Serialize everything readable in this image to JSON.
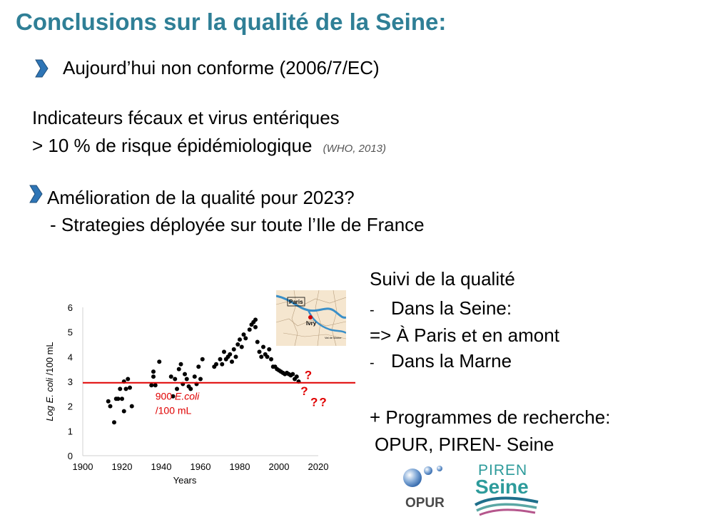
{
  "slide": {
    "title": "Conclusions sur la qualité de la Seine:",
    "bullet1": "Aujourd’hui non conforme  (2006/7/EC)",
    "indicators_line1": "Indicateurs fécaux et virus entériques",
    "indicators_line2": "> 10 % de risque épidémiologique",
    "reference": "(WHO, 2013)",
    "bullet2_line1": "Amélioration de la qualité pour 2023?",
    "bullet2_line2": "- Strategies déployée sur toute l’Ile de France",
    "monitoring": {
      "heading": "Suivi de la qualité",
      "item1_dash": "-",
      "item1": "Dans la Seine:",
      "item1_detail": "=> À Paris et en amont",
      "item2_dash": "-",
      "item2": "Dans la Marne"
    },
    "research_line1": "+ Programmes de recherche:",
    "research_line2": "OPUR, PIREN- Seine",
    "logos": {
      "opur": "OPUR",
      "piren_top": "PIREN",
      "piren_bottom": "Seine"
    },
    "map_labels": {
      "paris": "Paris",
      "ivry": "Ivry",
      "valdemarne": "Val de Marne"
    },
    "colors": {
      "title": "#2f7f96",
      "threshold": "#e00000",
      "arrow": "#2e75b6",
      "river": "#3a8fc8"
    }
  },
  "chart_data": {
    "type": "scatter",
    "xlabel": "Years",
    "ylabel_prefix": "Log ",
    "ylabel_italic": "E. coli",
    "ylabel_suffix": " /100 mL",
    "xlim": [
      1900,
      2020
    ],
    "ylim": [
      0,
      6
    ],
    "xticks": [
      1900,
      1920,
      1940,
      1960,
      1980,
      2000,
      2020
    ],
    "yticks": [
      0,
      1,
      2,
      3,
      4,
      5,
      6
    ],
    "threshold": {
      "value": 2.95,
      "label_number": "900 ",
      "label_italic": "E.coli",
      "label_line2": "/100 mL"
    },
    "question_marks": [
      {
        "x": 2013,
        "y": 3.1,
        "text": "?"
      },
      {
        "x": 2011,
        "y": 2.45,
        "text": "?"
      },
      {
        "x": 2016,
        "y": 2.0,
        "text": "??"
      }
    ],
    "points": [
      [
        1913,
        2.2
      ],
      [
        1914,
        2.0
      ],
      [
        1916,
        1.35
      ],
      [
        1917,
        2.3
      ],
      [
        1918,
        2.3
      ],
      [
        1919,
        2.7
      ],
      [
        1920,
        2.3
      ],
      [
        1921,
        3.0
      ],
      [
        1921,
        1.8
      ],
      [
        1922,
        2.7
      ],
      [
        1923,
        3.1
      ],
      [
        1924,
        2.75
      ],
      [
        1925,
        2.0
      ],
      [
        1935,
        2.85
      ],
      [
        1936,
        3.4
      ],
      [
        1936,
        3.2
      ],
      [
        1937,
        2.85
      ],
      [
        1939,
        3.8
      ],
      [
        1945,
        3.2
      ],
      [
        1946,
        2.4
      ],
      [
        1947,
        3.1
      ],
      [
        1948,
        2.7
      ],
      [
        1949,
        3.5
      ],
      [
        1950,
        3.7
      ],
      [
        1951,
        2.9
      ],
      [
        1952,
        3.3
      ],
      [
        1953,
        3.1
      ],
      [
        1954,
        2.8
      ],
      [
        1955,
        2.7
      ],
      [
        1957,
        3.2
      ],
      [
        1958,
        2.9
      ],
      [
        1959,
        3.6
      ],
      [
        1960,
        3.1
      ],
      [
        1961,
        3.9
      ],
      [
        1967,
        3.6
      ],
      [
        1968,
        3.7
      ],
      [
        1970,
        3.9
      ],
      [
        1971,
        3.7
      ],
      [
        1972,
        4.2
      ],
      [
        1973,
        3.9
      ],
      [
        1974,
        4.0
      ],
      [
        1975,
        4.1
      ],
      [
        1976,
        3.8
      ],
      [
        1977,
        4.3
      ],
      [
        1978,
        4.0
      ],
      [
        1979,
        4.5
      ],
      [
        1980,
        4.7
      ],
      [
        1981,
        4.4
      ],
      [
        1982,
        4.9
      ],
      [
        1983,
        4.75
      ],
      [
        1985,
        5.1
      ],
      [
        1986,
        5.3
      ],
      [
        1987,
        5.4
      ],
      [
        1988,
        5.5
      ],
      [
        1988,
        5.2
      ],
      [
        1989,
        4.6
      ],
      [
        1990,
        4.2
      ],
      [
        1991,
        4.0
      ],
      [
        1992,
        4.4
      ],
      [
        1993,
        4.1
      ],
      [
        1994,
        4.0
      ],
      [
        1995,
        4.3
      ],
      [
        1996,
        3.9
      ],
      [
        1997,
        3.6
      ],
      [
        1998,
        3.6
      ],
      [
        1999,
        3.5
      ],
      [
        2000,
        3.45
      ],
      [
        2001,
        3.4
      ],
      [
        2002,
        3.35
      ],
      [
        2003,
        3.3
      ],
      [
        2004,
        3.35
      ],
      [
        2005,
        3.3
      ],
      [
        2006,
        3.25
      ],
      [
        2007,
        3.3
      ],
      [
        2008,
        3.1
      ],
      [
        2009,
        3.2
      ],
      [
        2010,
        3.0
      ]
    ]
  }
}
